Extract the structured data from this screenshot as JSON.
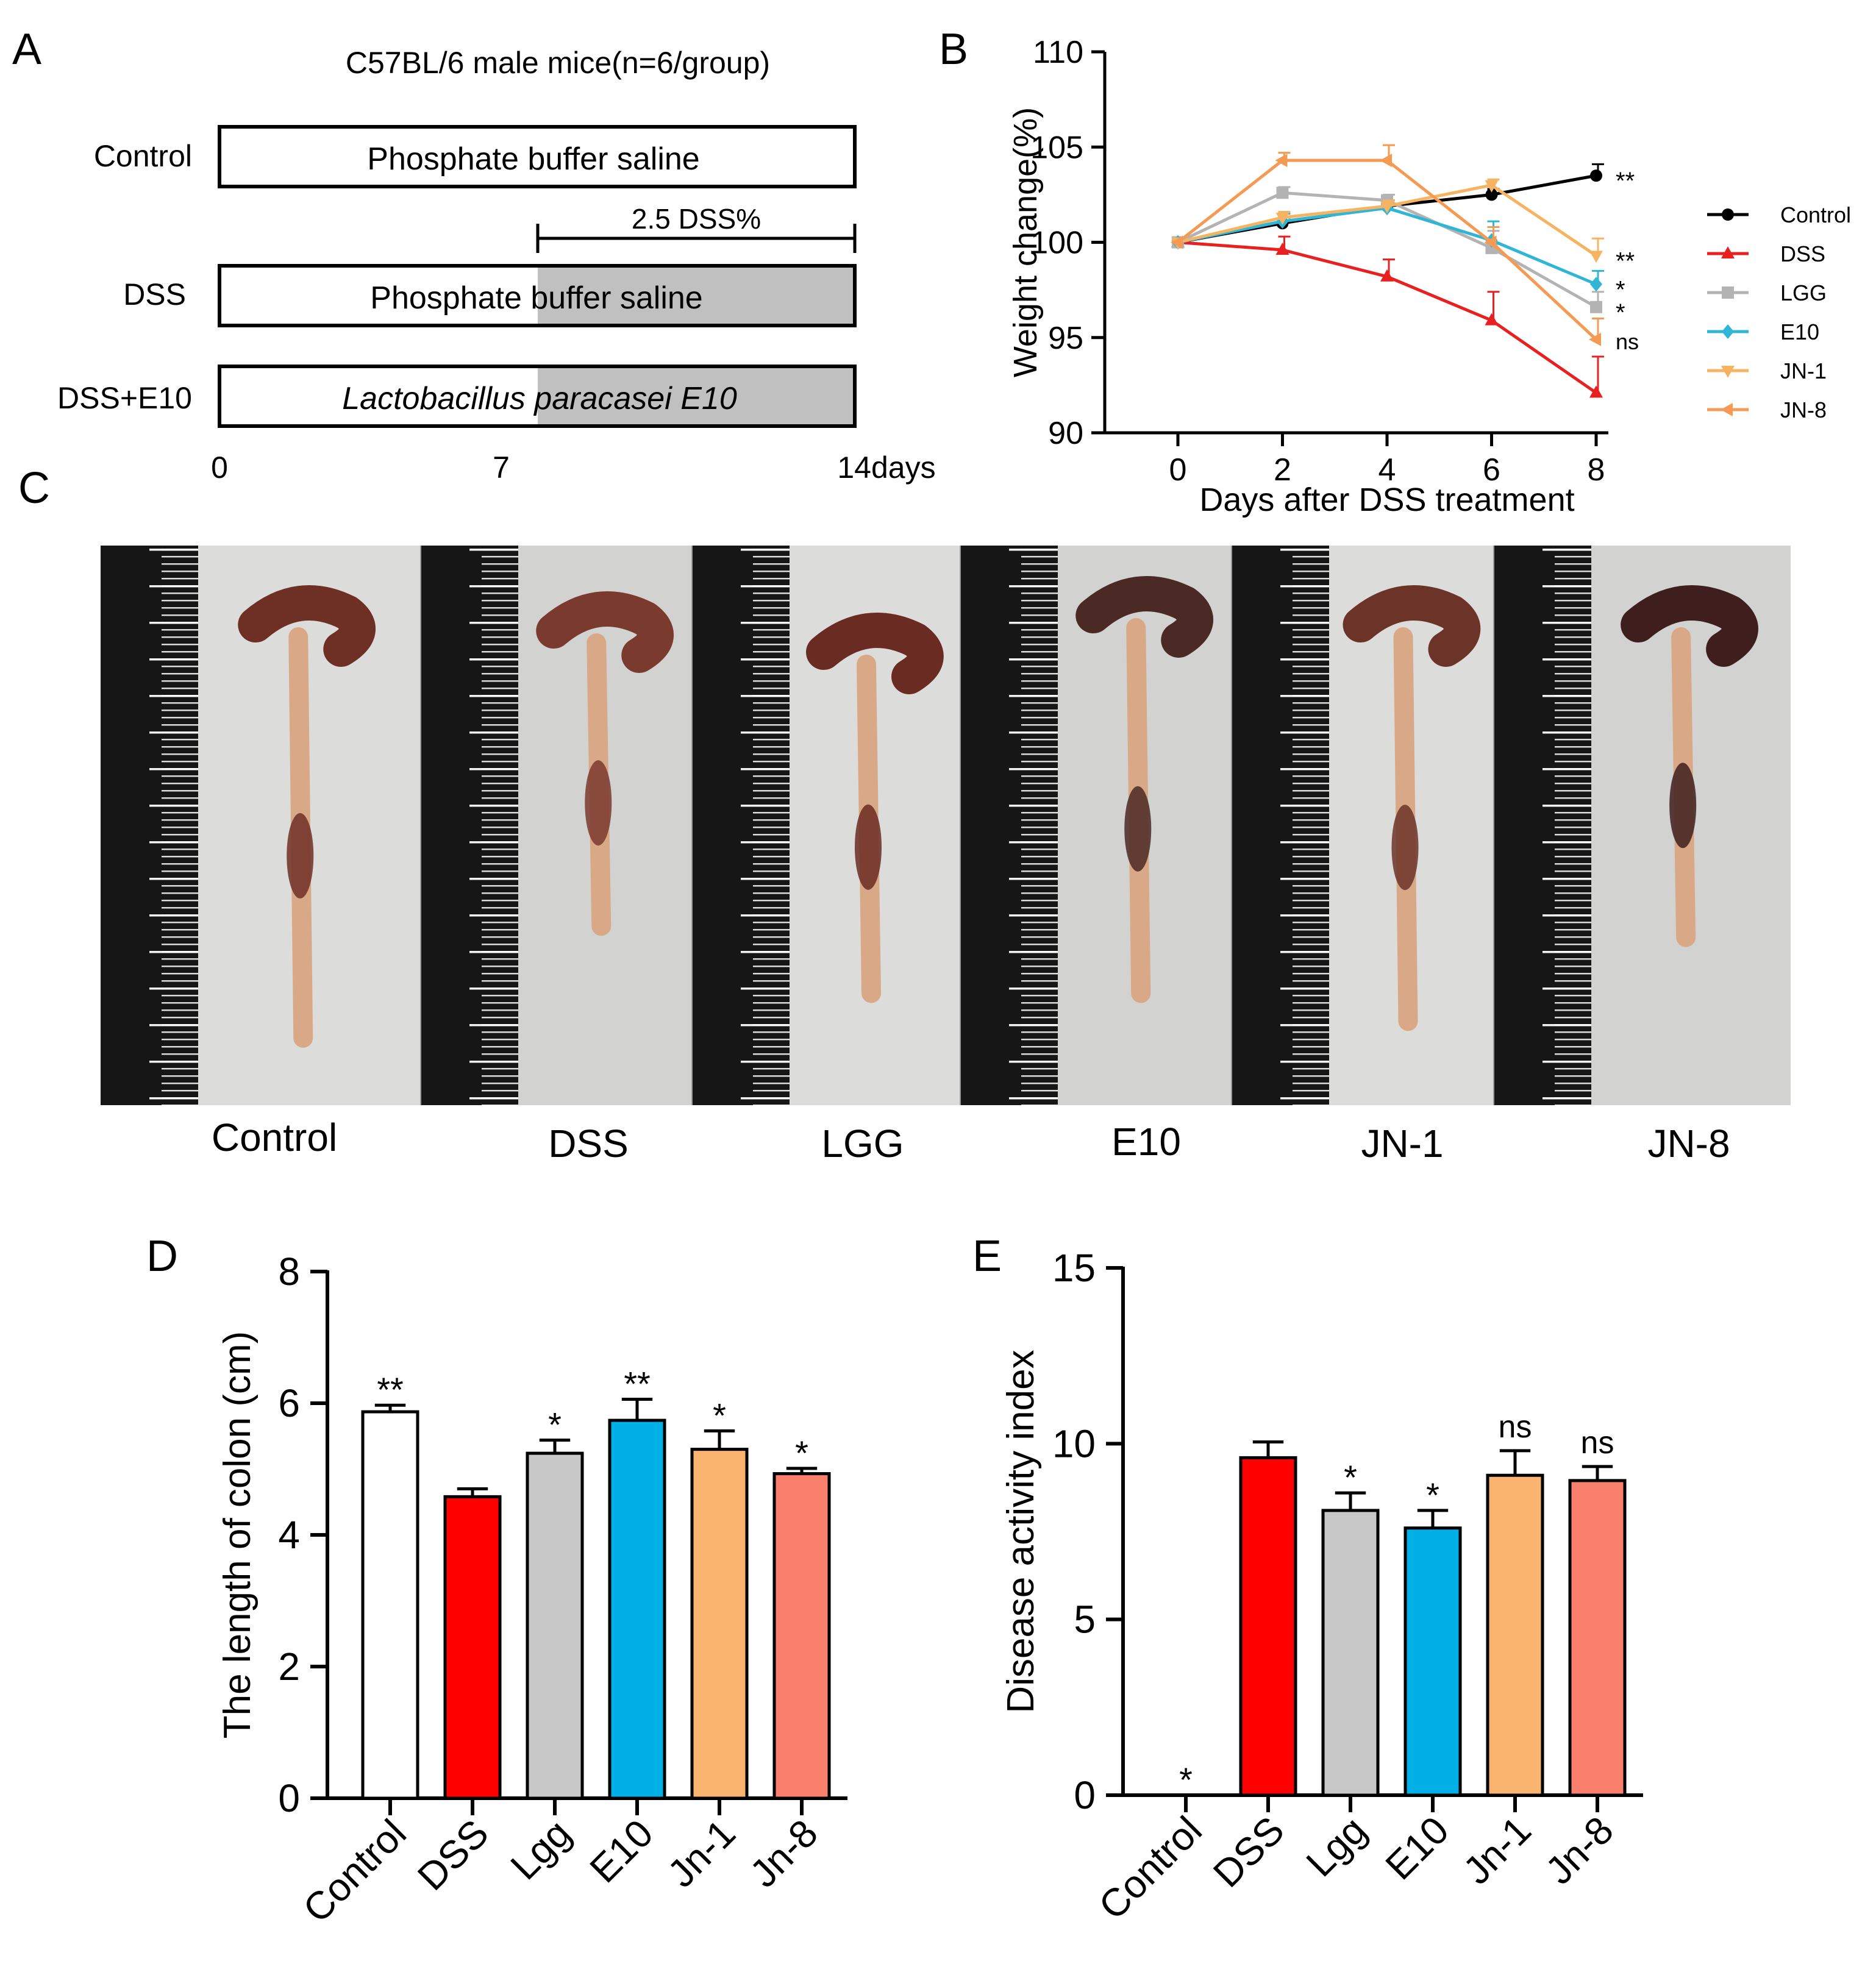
{
  "panels": {
    "A": {
      "letter": "A",
      "title": "C57BL/6 male mice(n=6/group)",
      "rows": [
        {
          "label": "Control",
          "bar_text": "Phosphate buffer saline",
          "italic": false,
          "dss_shaded": false
        },
        {
          "label": "DSS",
          "bar_text": "Phosphate buffer saline",
          "italic": false,
          "dss_shaded": true
        },
        {
          "label": "DSS+E10",
          "bar_text": "Lactobacillus paracasei E10",
          "italic": true,
          "dss_shaded": true
        }
      ],
      "dss_bracket_label": "2.5 DSS%",
      "timeline_ticks": [
        "0",
        "7",
        "14days"
      ],
      "colors": {
        "dss_shade": "#c0c0c0"
      }
    },
    "B": {
      "letter": "B"
    },
    "C": {
      "letter": "C",
      "photo_labels": [
        "Control",
        "DSS",
        "LGG",
        "E10",
        "JN-1",
        "JN-8"
      ]
    },
    "D": {
      "letter": "D"
    },
    "E": {
      "letter": "E"
    }
  },
  "chart_data": [
    {
      "panel": "B",
      "type": "line",
      "xlabel": "Days after DSS treatment",
      "ylabel": "Weight change(%)",
      "x": [
        0,
        2,
        4,
        6,
        8
      ],
      "xlim": [
        0,
        8
      ],
      "ylim": [
        90,
        110
      ],
      "yticks": [
        90,
        95,
        100,
        105,
        110
      ],
      "grid": false,
      "legend_position": "right",
      "series": [
        {
          "name": "Control",
          "color": "#000000",
          "marker": "circle",
          "values": [
            100,
            101,
            101.9,
            102.5,
            103.5
          ],
          "errors": [
            0,
            0.3,
            0.3,
            0.3,
            0.6
          ],
          "significance": "**"
        },
        {
          "name": "DSS",
          "color": "#e8201f",
          "marker": "triangle-up",
          "values": [
            100,
            99.6,
            98.2,
            95.9,
            92.1
          ],
          "errors": [
            0,
            0.7,
            0.9,
            1.5,
            1.9
          ],
          "significance": ""
        },
        {
          "name": "LGG",
          "color": "#b3b3b3",
          "marker": "square",
          "values": [
            100,
            102.6,
            102.2,
            99.7,
            96.6
          ],
          "errors": [
            0,
            0.3,
            0.3,
            0.9,
            0.8
          ],
          "significance": "*"
        },
        {
          "name": "E10",
          "color": "#2fb6d6",
          "marker": "diamond",
          "values": [
            100,
            101.1,
            101.8,
            100.1,
            97.8
          ],
          "errors": [
            0,
            0.4,
            0.4,
            1.0,
            0.7
          ],
          "significance": "*"
        },
        {
          "name": "JN-1",
          "color": "#f6b462",
          "marker": "triangle-down",
          "values": [
            100,
            101.3,
            101.9,
            103.0,
            99.3
          ],
          "errors": [
            0,
            0.3,
            0.3,
            0.3,
            0.9
          ],
          "significance": "**"
        },
        {
          "name": "JN-8",
          "color": "#f59a53",
          "marker": "triangle-left",
          "values": [
            100,
            104.3,
            104.3,
            100.0,
            94.9
          ],
          "errors": [
            0,
            0.4,
            0.8,
            0.8,
            1.1
          ],
          "significance": "ns"
        }
      ]
    },
    {
      "panel": "D",
      "type": "bar",
      "ylabel": "The length of colon (cm)",
      "categories": [
        "Control",
        "DSS",
        "Lgg",
        "E10",
        "Jn-1",
        "Jn-8"
      ],
      "values": [
        5.87,
        4.58,
        5.24,
        5.74,
        5.3,
        4.93
      ],
      "errors": [
        0.1,
        0.12,
        0.2,
        0.32,
        0.28,
        0.08
      ],
      "significance": [
        "**",
        "",
        "*",
        "**",
        "*",
        "*"
      ],
      "colors": [
        "#ffffff",
        "#ff0000",
        "#c8c8c8",
        "#00b0e6",
        "#fab470",
        "#fa7f6d"
      ],
      "ylim": [
        0,
        8
      ],
      "yticks": [
        0,
        2,
        4,
        6,
        8
      ],
      "grid": false
    },
    {
      "panel": "E",
      "type": "bar",
      "ylabel": "Disease activity index",
      "categories": [
        "Control",
        "DSS",
        "Lgg",
        "E10",
        "Jn-1",
        "Jn-8"
      ],
      "values": [
        0,
        9.6,
        8.1,
        7.6,
        9.1,
        8.95
      ],
      "errors": [
        0,
        0.45,
        0.5,
        0.5,
        0.7,
        0.4
      ],
      "significance": [
        "*",
        "",
        "*",
        "*",
        "ns",
        "ns"
      ],
      "colors": [
        "#ffffff",
        "#ff0000",
        "#c8c8c8",
        "#00b0e6",
        "#fab470",
        "#fa7f6d"
      ],
      "ylim": [
        0,
        15
      ],
      "yticks": [
        0,
        5,
        10,
        15
      ],
      "grid": false
    }
  ]
}
